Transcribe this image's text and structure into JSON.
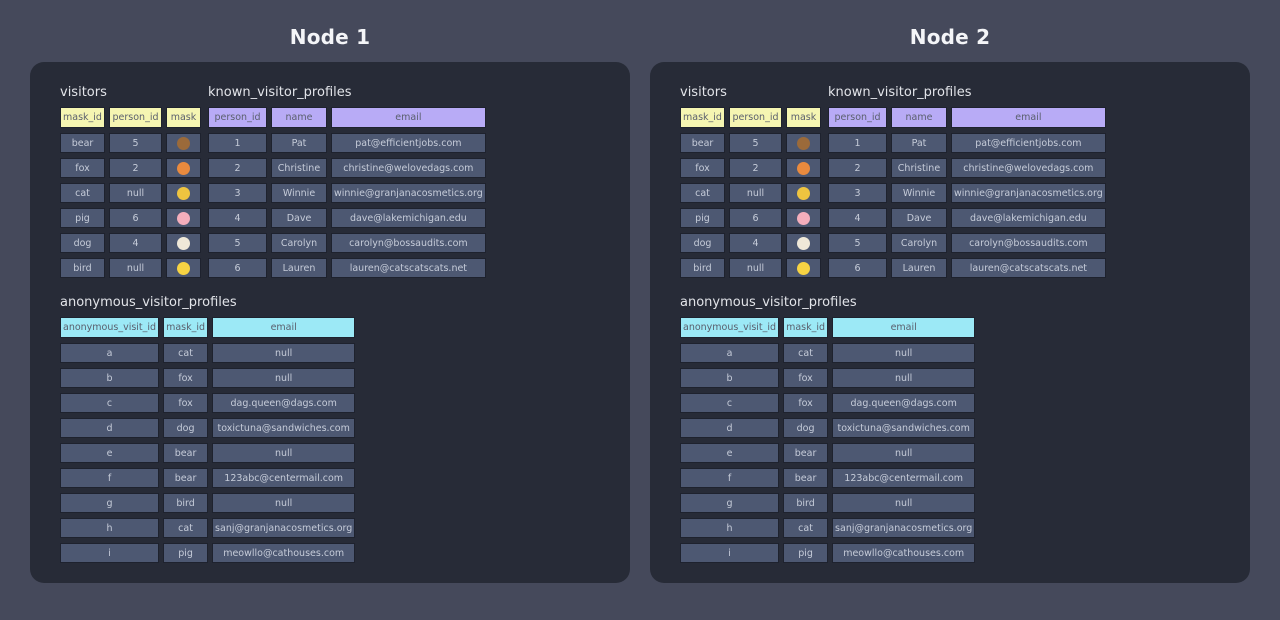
{
  "colors": {
    "page_bg": "#45495b",
    "panel_bg": "#272b37",
    "cell_bg": "#4d5872",
    "visitors_header": "#f5f5b2",
    "known_header": "#b8abf6",
    "anonymous_header": "#9ce9f6"
  },
  "mask_emoji_colors": {
    "🐻": "#9b6a3a",
    "🦊": "#e98a3e",
    "🐱": "#eec440",
    "🐷": "#f4aebc",
    "🐶": "#efe8d8",
    "🐤": "#f6d343"
  },
  "nodes": [
    {
      "title": "Node 1",
      "tables": [
        {
          "id": "visitors",
          "title": "visitors",
          "header_color": "#f5f5b2",
          "columns": [
            "mask_id",
            "person_id",
            "mask"
          ],
          "rows": [
            [
              "bear",
              "5",
              "🐻"
            ],
            [
              "fox",
              "2",
              "🦊"
            ],
            [
              "cat",
              "null",
              "🐱"
            ],
            [
              "pig",
              "6",
              "🐷"
            ],
            [
              "dog",
              "4",
              "🐶"
            ],
            [
              "bird",
              "null",
              "🐤"
            ]
          ]
        },
        {
          "id": "known_visitor_profiles",
          "title": "known_visitor_profiles",
          "header_color": "#b8abf6",
          "columns": [
            "person_id",
            "name",
            "email"
          ],
          "rows": [
            [
              "1",
              "Pat",
              "pat@efficientjobs.com"
            ],
            [
              "2",
              "Christine",
              "christine@welovedags.com"
            ],
            [
              "3",
              "Winnie",
              "winnie@granjanacosmetics.org"
            ],
            [
              "4",
              "Dave",
              "dave@lakemichigan.edu"
            ],
            [
              "5",
              "Carolyn",
              "carolyn@bossaudits.com"
            ],
            [
              "6",
              "Lauren",
              "lauren@catscatscats.net"
            ]
          ]
        },
        {
          "id": "anonymous_visitor_profiles",
          "title": "anonymous_visitor_profiles",
          "header_color": "#9ce9f6",
          "columns": [
            "anonymous_visit_id",
            "mask_id",
            "email"
          ],
          "rows": [
            [
              "a",
              "cat",
              "null"
            ],
            [
              "b",
              "fox",
              "null"
            ],
            [
              "c",
              "fox",
              "dag.queen@dags.com"
            ],
            [
              "d",
              "dog",
              "toxictuna@sandwiches.com"
            ],
            [
              "e",
              "bear",
              "null"
            ],
            [
              "f",
              "bear",
              "123abc@centermail.com"
            ],
            [
              "g",
              "bird",
              "null"
            ],
            [
              "h",
              "cat",
              "sanj@granjanacosmetics.org"
            ],
            [
              "i",
              "pig",
              "meowllo@cathouses.com"
            ]
          ]
        }
      ]
    },
    {
      "title": "Node 2",
      "tables": [
        {
          "id": "visitors",
          "title": "visitors",
          "header_color": "#f5f5b2",
          "columns": [
            "mask_id",
            "person_id",
            "mask"
          ],
          "rows": [
            [
              "bear",
              "5",
              "🐻"
            ],
            [
              "fox",
              "2",
              "🦊"
            ],
            [
              "cat",
              "null",
              "🐱"
            ],
            [
              "pig",
              "6",
              "🐷"
            ],
            [
              "dog",
              "4",
              "🐶"
            ],
            [
              "bird",
              "null",
              "🐤"
            ]
          ]
        },
        {
          "id": "known_visitor_profiles",
          "title": "known_visitor_profiles",
          "header_color": "#b8abf6",
          "columns": [
            "person_id",
            "name",
            "email"
          ],
          "rows": [
            [
              "1",
              "Pat",
              "pat@efficientjobs.com"
            ],
            [
              "2",
              "Christine",
              "christine@welovedags.com"
            ],
            [
              "3",
              "Winnie",
              "winnie@granjanacosmetics.org"
            ],
            [
              "4",
              "Dave",
              "dave@lakemichigan.edu"
            ],
            [
              "5",
              "Carolyn",
              "carolyn@bossaudits.com"
            ],
            [
              "6",
              "Lauren",
              "lauren@catscatscats.net"
            ]
          ]
        },
        {
          "id": "anonymous_visitor_profiles",
          "title": "anonymous_visitor_profiles",
          "header_color": "#9ce9f6",
          "columns": [
            "anonymous_visit_id",
            "mask_id",
            "email"
          ],
          "rows": [
            [
              "a",
              "cat",
              "null"
            ],
            [
              "b",
              "fox",
              "null"
            ],
            [
              "c",
              "fox",
              "dag.queen@dags.com"
            ],
            [
              "d",
              "dog",
              "toxictuna@sandwiches.com"
            ],
            [
              "e",
              "bear",
              "null"
            ],
            [
              "f",
              "bear",
              "123abc@centermail.com"
            ],
            [
              "g",
              "bird",
              "null"
            ],
            [
              "h",
              "cat",
              "sanj@granjanacosmetics.org"
            ],
            [
              "i",
              "pig",
              "meowllo@cathouses.com"
            ]
          ]
        }
      ]
    }
  ]
}
